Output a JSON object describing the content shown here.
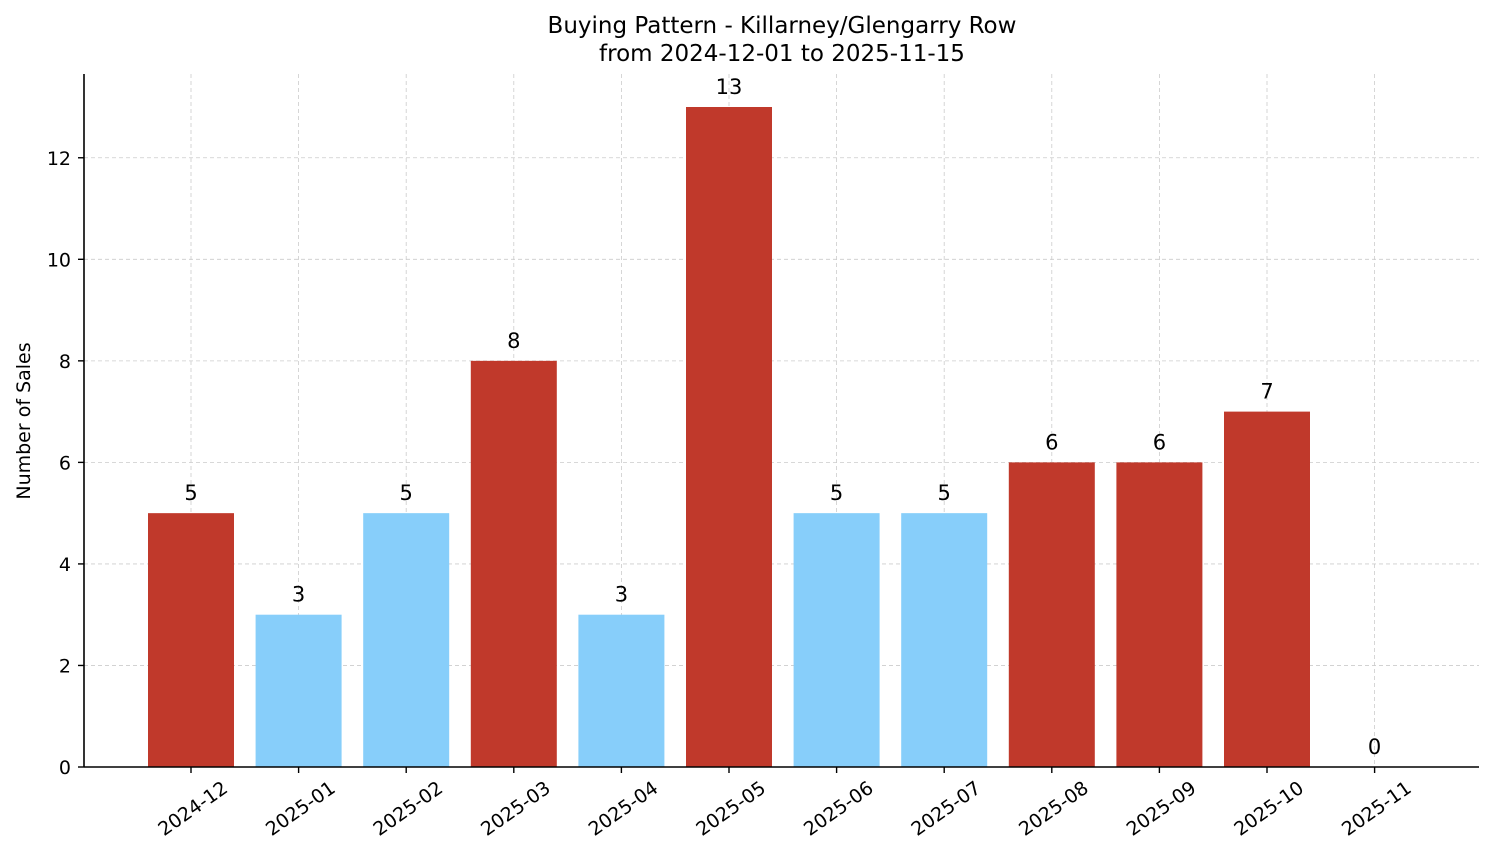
{
  "chart_data": {
    "type": "bar",
    "title": "Buying Pattern - Killarney/Glengarry Row",
    "subtitle": "from 2024-12-01 to 2025-11-15",
    "xlabel": "",
    "ylabel": "Number of Sales",
    "categories": [
      "2024-12",
      "2025-01",
      "2025-02",
      "2025-03",
      "2025-04",
      "2025-05",
      "2025-06",
      "2025-07",
      "2025-08",
      "2025-09",
      "2025-10",
      "2025-11"
    ],
    "values": [
      5,
      3,
      5,
      8,
      3,
      13,
      5,
      5,
      6,
      6,
      7,
      0
    ],
    "colors": [
      "#c0392b",
      "#87cefa",
      "#87cefa",
      "#c0392b",
      "#87cefa",
      "#c0392b",
      "#87cefa",
      "#87cefa",
      "#c0392b",
      "#c0392b",
      "#c0392b",
      "#c0392b"
    ],
    "yticks": [
      0,
      2,
      4,
      6,
      8,
      10,
      12
    ],
    "ylim": [
      0,
      13.65
    ],
    "grid": true,
    "legend": "none"
  }
}
